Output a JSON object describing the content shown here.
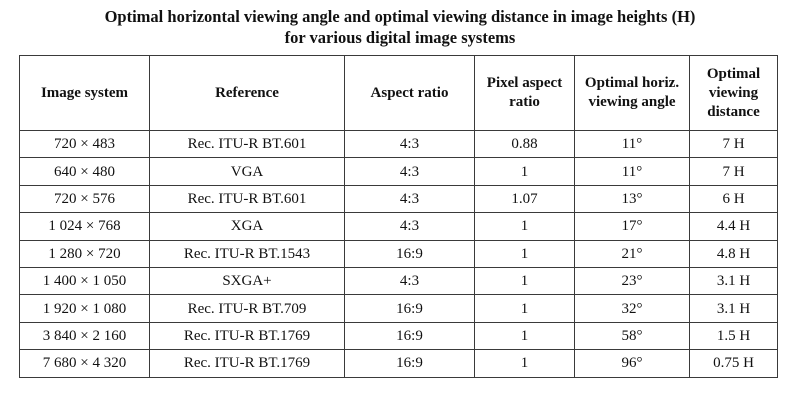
{
  "title": {
    "line1": "Optimal horizontal viewing angle and optimal viewing distance in image heights (H)",
    "line2": "for various digital image systems"
  },
  "table": {
    "headers": [
      "Image system",
      "Reference",
      "Aspect ratio",
      "Pixel aspect ratio",
      "Optimal horiz. viewing angle",
      "Optimal viewing distance"
    ],
    "rows": [
      [
        "720 × 483",
        "Rec. ITU-R BT.601",
        "4:3",
        "0.88",
        "11°",
        "7 H"
      ],
      [
        "640 × 480",
        "VGA",
        "4:3",
        "1",
        "11°",
        "7 H"
      ],
      [
        "720 × 576",
        "Rec. ITU-R BT.601",
        "4:3",
        "1.07",
        "13°",
        "6 H"
      ],
      [
        "1 024 × 768",
        "XGA",
        "4:3",
        "1",
        "17°",
        "4.4 H"
      ],
      [
        "1 280 × 720",
        "Rec. ITU-R BT.1543",
        "16:9",
        "1",
        "21°",
        "4.8 H"
      ],
      [
        "1 400 × 1 050",
        "SXGA+",
        "4:3",
        "1",
        "23°",
        "3.1 H"
      ],
      [
        "1 920 × 1 080",
        "Rec. ITU-R BT.709",
        "16:9",
        "1",
        "32°",
        "3.1 H"
      ],
      [
        "3 840 × 2 160",
        "Rec. ITU-R BT.1769",
        "16:9",
        "1",
        "58°",
        "1.5 H"
      ],
      [
        "7 680 × 4 320",
        "Rec. ITU-R BT.1769",
        "16:9",
        "1",
        "96°",
        "0.75 H"
      ]
    ]
  }
}
